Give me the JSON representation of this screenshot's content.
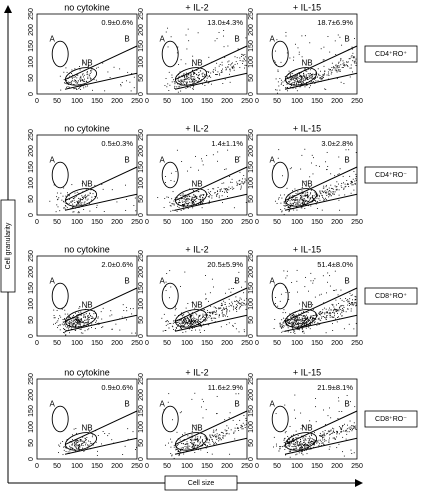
{
  "rows": [
    {
      "label": "CD4⁺RO⁺",
      "panels": [
        {
          "title": "no cytokine",
          "percent": "0.9±0.6%"
        },
        {
          "title": "+ IL-2",
          "percent": "13.0±4.3%"
        },
        {
          "title": "+ IL-15",
          "percent": "18.7±6.9%"
        }
      ]
    },
    {
      "label": "CD4⁺RO⁻",
      "panels": [
        {
          "title": "no cytokine",
          "percent": "0.5±0.3%"
        },
        {
          "title": "+ IL-2",
          "percent": "1.4±1.1%"
        },
        {
          "title": "+ IL-15",
          "percent": "3.0±2.8%"
        }
      ]
    },
    {
      "label": "CD8⁺RO⁺",
      "panels": [
        {
          "title": "no cytokine",
          "percent": "2.0±0.6%"
        },
        {
          "title": "+ IL-2",
          "percent": "20.5±5.9%"
        },
        {
          "title": "+ IL-15",
          "percent": "51.4±8.0%"
        }
      ]
    },
    {
      "label": "CD8⁺RO⁻",
      "panels": [
        {
          "title": "no cytokine",
          "percent": "0.9±0.6%"
        },
        {
          "title": "+ IL-2",
          "percent": "11.6±2.9%"
        },
        {
          "title": "+ IL-15",
          "percent": "21.9±8.1%"
        }
      ]
    }
  ],
  "ticks": [
    "0",
    "50",
    "100",
    "150",
    "200",
    "250"
  ],
  "gate_labels": {
    "a": "A",
    "nb": "NB",
    "b": "B"
  },
  "y_axis_label": "Cell granularity",
  "x_axis_label": "Cell size"
}
